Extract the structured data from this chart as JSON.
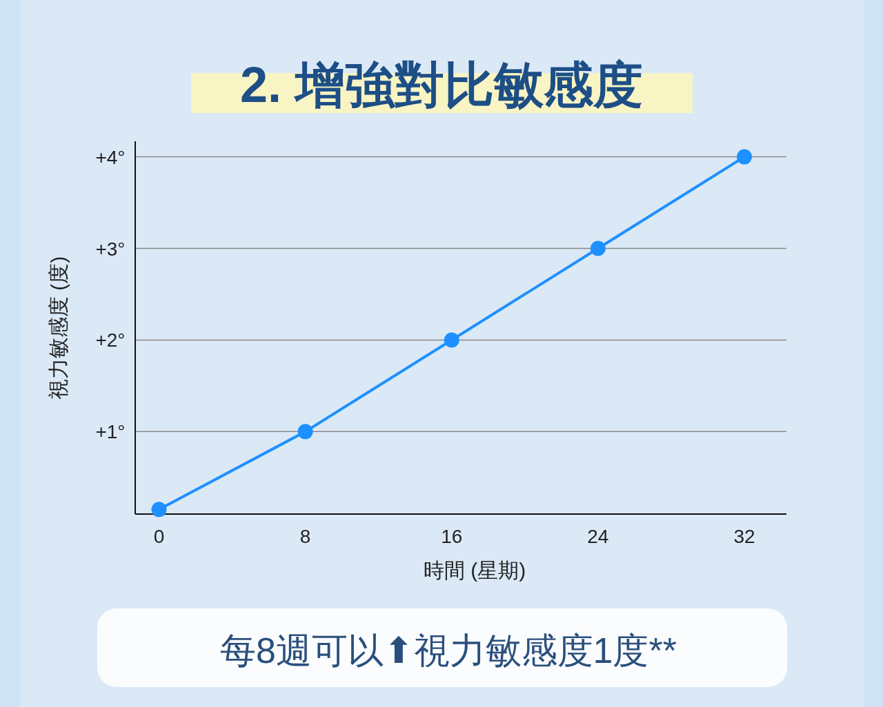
{
  "chart_data": {
    "type": "line",
    "title": "2. 增強對比敏感度",
    "xlabel": "時間 (星期)",
    "ylabel": "視力敏感度 (度)",
    "x": [
      0,
      8,
      16,
      24,
      32
    ],
    "series": [
      {
        "color": "#1e90ff",
        "values": [
          0.15,
          1,
          2,
          3,
          4
        ]
      }
    ],
    "xlim": [
      -1.3,
      34.3
    ],
    "xticks": [
      0,
      8,
      16,
      24,
      32
    ],
    "ylim": [
      0.1,
      4.17
    ],
    "yticks": [
      {
        "value": 1,
        "label": "+1°"
      },
      {
        "value": 2,
        "label": "+2°"
      },
      {
        "value": 3,
        "label": "+3°"
      },
      {
        "value": 4,
        "label": "+4°"
      }
    ],
    "grid": "y",
    "marker": "circle",
    "line_style": "solid",
    "annotations": [
      "每8週可以⬆視力敏感度1度**"
    ]
  }
}
